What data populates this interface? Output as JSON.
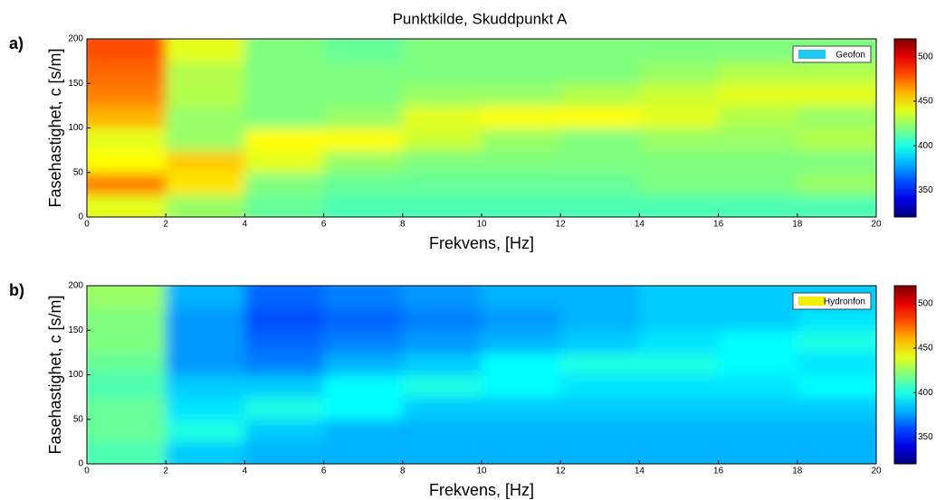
{
  "title": "Punktkilde, Skuddpunkt A",
  "chart_data": [
    {
      "type": "heatmap",
      "panel_label": "a)",
      "x_label": "Frekvens, [Hz]",
      "y_label": "Fasehastighet, c [s/m]",
      "legend": {
        "label": "Geofon",
        "color": "#1ec8f0"
      },
      "xbins": [
        0,
        2,
        4,
        6,
        8,
        10,
        12,
        14,
        16,
        18,
        20
      ],
      "ybins": [
        0,
        25,
        50,
        75,
        100,
        125,
        150,
        175,
        200
      ],
      "z": [
        [
          440,
          425,
          415,
          410,
          410,
          410,
          410,
          410,
          410,
          410
        ],
        [
          470,
          450,
          420,
          415,
          415,
          415,
          415,
          420,
          420,
          425
        ],
        [
          445,
          455,
          440,
          425,
          420,
          420,
          420,
          420,
          420,
          420
        ],
        [
          440,
          425,
          445,
          445,
          435,
          425,
          420,
          425,
          425,
          430
        ],
        [
          460,
          425,
          420,
          425,
          440,
          445,
          445,
          440,
          430,
          425
        ],
        [
          470,
          430,
          420,
          420,
          425,
          425,
          430,
          435,
          440,
          440
        ],
        [
          475,
          430,
          420,
          420,
          420,
          420,
          420,
          425,
          430,
          430
        ],
        [
          480,
          440,
          420,
          415,
          420,
          420,
          420,
          420,
          420,
          420
        ]
      ],
      "xlim": [
        0,
        20
      ],
      "xticks": [
        0,
        2,
        4,
        6,
        8,
        10,
        12,
        14,
        16,
        18,
        20
      ],
      "ylim": [
        0,
        200
      ],
      "yticks": [
        0,
        50,
        100,
        150,
        200
      ],
      "zlim": [
        320,
        520
      ],
      "zticks": [
        350,
        400,
        450,
        500
      ],
      "colormap": "jet"
    },
    {
      "type": "heatmap",
      "panel_label": "b)",
      "x_label": "Frekvens, [Hz]",
      "y_label": "Fasehastighet, c [s/m]",
      "legend": {
        "label": "Hydronfon",
        "color": "#f5f000"
      },
      "xbins": [
        0,
        2,
        4,
        6,
        8,
        10,
        12,
        14,
        16,
        18,
        20
      ],
      "ybins": [
        0,
        25,
        50,
        75,
        100,
        125,
        150,
        175,
        200
      ],
      "z": [
        [
          410,
          385,
          380,
          380,
          380,
          380,
          380,
          380,
          380,
          380
        ],
        [
          415,
          400,
          385,
          380,
          380,
          380,
          380,
          380,
          380,
          380
        ],
        [
          415,
          390,
          400,
          395,
          385,
          385,
          385,
          385,
          385,
          385
        ],
        [
          410,
          385,
          385,
          395,
          400,
          395,
          390,
          390,
          390,
          395
        ],
        [
          415,
          375,
          370,
          380,
          385,
          395,
          400,
          400,
          395,
          390
        ],
        [
          420,
          375,
          365,
          370,
          375,
          380,
          385,
          390,
          395,
          400
        ],
        [
          420,
          375,
          360,
          365,
          370,
          375,
          380,
          385,
          385,
          390
        ],
        [
          425,
          380,
          365,
          370,
          375,
          380,
          380,
          385,
          385,
          385
        ]
      ],
      "xlim": [
        0,
        20
      ],
      "xticks": [
        0,
        2,
        4,
        6,
        8,
        10,
        12,
        14,
        16,
        18,
        20
      ],
      "ylim": [
        0,
        200
      ],
      "yticks": [
        0,
        50,
        100,
        150,
        200
      ],
      "zlim": [
        320,
        520
      ],
      "zticks": [
        350,
        400,
        450,
        500
      ],
      "colormap": "jet"
    }
  ]
}
